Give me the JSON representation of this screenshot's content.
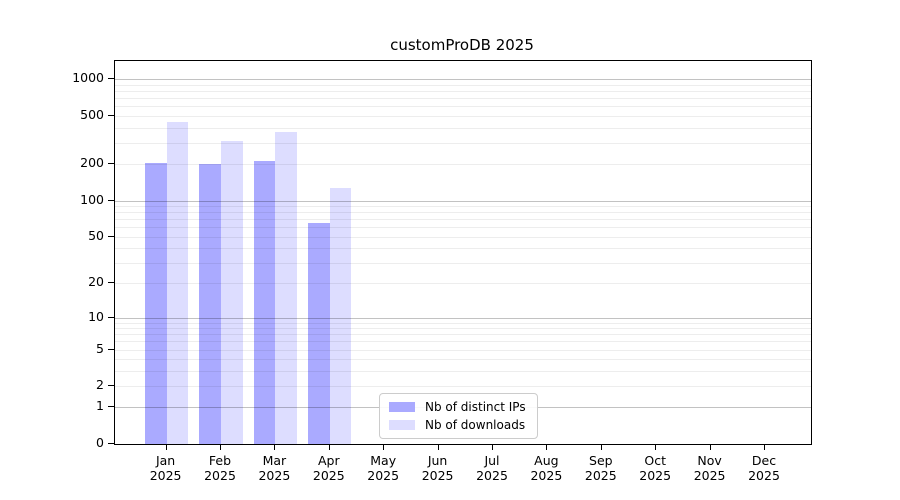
{
  "figure": {
    "background": "#ffffff"
  },
  "chart_data": {
    "type": "bar",
    "title": "customProDB 2025",
    "year_label": "2025",
    "categories": [
      "Jan",
      "Feb",
      "Mar",
      "Apr",
      "May",
      "Jun",
      "Jul",
      "Aug",
      "Sep",
      "Oct",
      "Nov",
      "Dec"
    ],
    "series": [
      {
        "name": "Nb of distinct IPs",
        "color": "#aaaaff",
        "values": [
          205,
          200,
          212,
          65,
          null,
          null,
          null,
          null,
          null,
          null,
          null,
          null
        ]
      },
      {
        "name": "Nb of downloads",
        "color": "#ddddff",
        "values": [
          450,
          313,
          370,
          127,
          null,
          null,
          null,
          null,
          null,
          null,
          null,
          null
        ]
      }
    ],
    "yticks": [
      0,
      1,
      2,
      5,
      10,
      20,
      50,
      100,
      200,
      500,
      1000
    ],
    "yscale": "log1p",
    "ylim": [
      0,
      1400
    ],
    "xlabel": "",
    "ylabel": "",
    "grid": "horizontal, log minor lines, drawn over bars",
    "legend_position": "inside-bottom-center"
  },
  "colors": {
    "axis": "#000000",
    "major_grid": "#c3c3c3",
    "minor_grid": "#ededed",
    "text": "#000000"
  }
}
